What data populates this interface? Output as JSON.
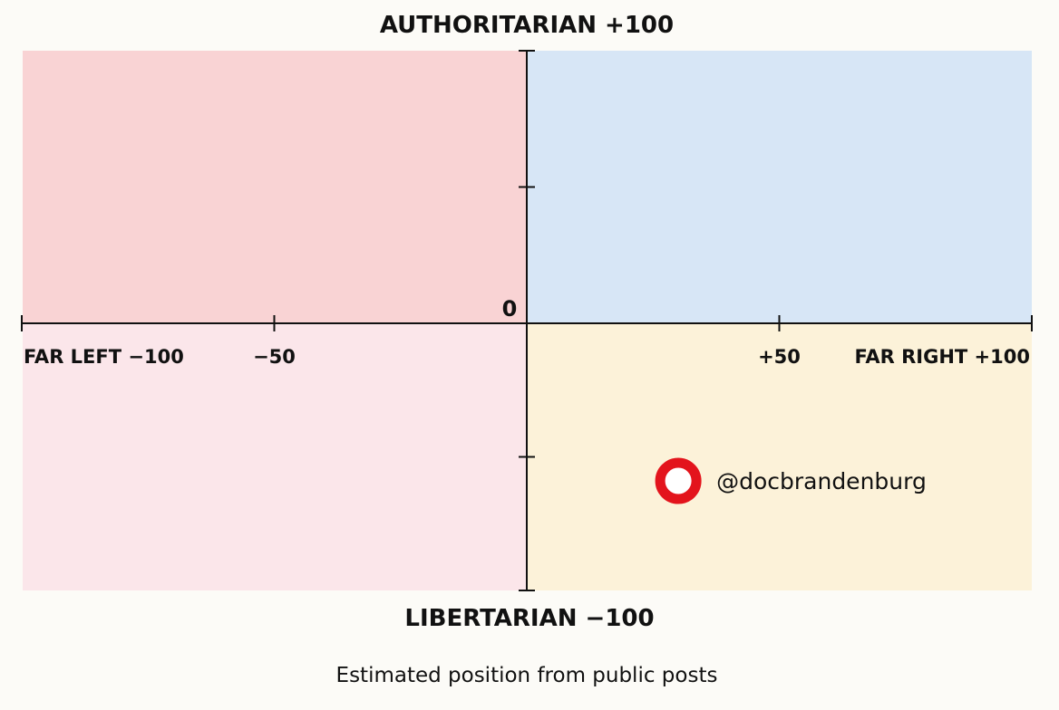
{
  "chart_data": {
    "type": "scatter",
    "title": "",
    "caption": "Estimated position from public posts",
    "y_axis": {
      "top_label": "AUTHORITARIAN +100",
      "bottom_label": "LIBERTARIAN −100",
      "range": [
        -100,
        100
      ]
    },
    "x_axis": {
      "range": [
        -100,
        100
      ],
      "ticks": [
        {
          "value": -100,
          "label": "FAR LEFT −100"
        },
        {
          "value": -50,
          "label": "−50"
        },
        {
          "value": 50,
          "label": "+50"
        },
        {
          "value": 100,
          "label": "FAR RIGHT +100"
        }
      ]
    },
    "origin_label": "0",
    "y_ticks": [
      -100,
      -50,
      50,
      100
    ],
    "quadrant_colors": {
      "top_left": "#f9d3d4",
      "top_right": "#d7e6f6",
      "bottom_left": "#fbe6ea",
      "bottom_right": "#fcf2d9"
    },
    "point_color": "#e3141c",
    "points": [
      {
        "label": "@docbrandenburg",
        "x": 30,
        "y": -59
      }
    ]
  }
}
